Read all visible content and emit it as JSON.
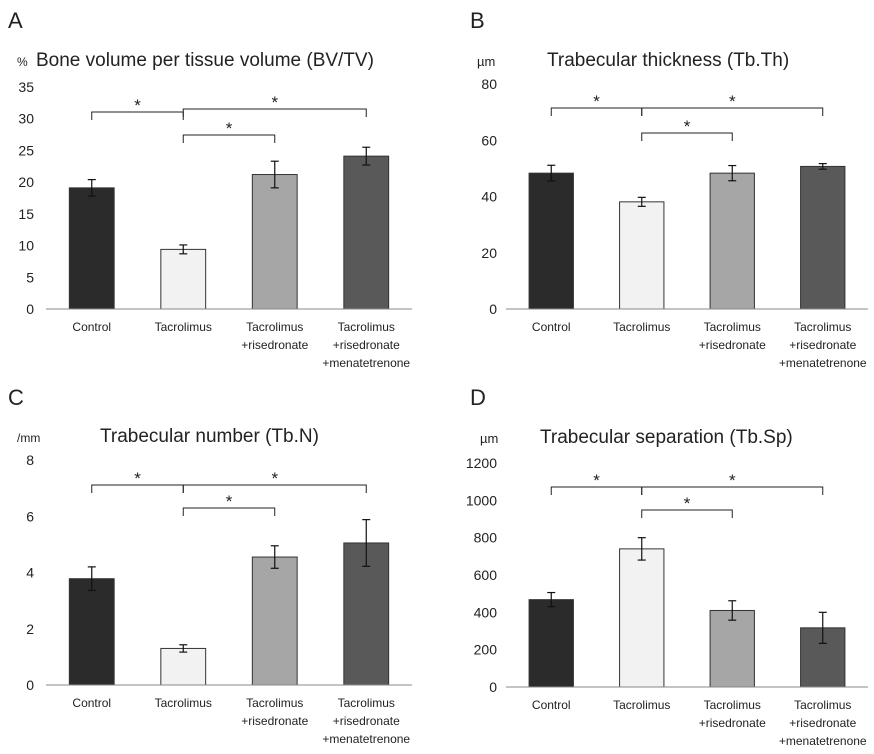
{
  "panels": [
    {
      "letter": "A",
      "unit": "%",
      "title": "Bone volume per tissue volume (BV/TV)"
    },
    {
      "letter": "B",
      "unit": "µm",
      "title": "Trabecular thickness  (Tb.Th)"
    },
    {
      "letter": "C",
      "unit": "/mm",
      "title": "Trabecular number  (Tb.N)"
    },
    {
      "letter": "D",
      "unit": "µm",
      "title": "Trabecular separation  (Tb.Sp)"
    }
  ],
  "colors": {
    "Control": "#2b2b2b",
    "Tacrolimus": "#f2f2f2",
    "Tacrolimus+risedronate": "#a6a6a6",
    "Tacrolimus+risedronate+menatetrenone": "#595959",
    "outline": "#333333"
  },
  "chart_data": [
    {
      "type": "bar",
      "title": "Bone volume per tissue volume (BV/TV)",
      "ylabel": "%",
      "categories": [
        "Control",
        "Tacrolimus",
        "Tacrolimus\n+risedronate",
        "Tacrolimus\n+risedronate\n+menatetrenone"
      ],
      "values": [
        19.1,
        9.4,
        21.2,
        24.1
      ],
      "errors": [
        1.3,
        0.7,
        2.1,
        1.4
      ],
      "ylim": [
        0,
        35
      ],
      "yticks": [
        0,
        5,
        10,
        15,
        20,
        25,
        30,
        35
      ],
      "significance": [
        {
          "from": 0,
          "to": 1,
          "label": "*"
        },
        {
          "from": 1,
          "to": 2,
          "label": "*"
        },
        {
          "from": 1,
          "to": 3,
          "label": "*"
        }
      ]
    },
    {
      "type": "bar",
      "title": "Trabecular thickness  (Tb.Th)",
      "ylabel": "µm",
      "categories": [
        "Control",
        "Tacrolimus",
        "Tacrolimus\n+risedronate",
        "Tacrolimus\n+risedronate\n+menatetrenone"
      ],
      "values": [
        48.3,
        38.1,
        48.3,
        50.7
      ],
      "errors": [
        2.8,
        1.6,
        2.7,
        1.0
      ],
      "ylim": [
        0,
        80
      ],
      "yticks": [
        0,
        20,
        40,
        60,
        80
      ],
      "significance": [
        {
          "from": 0,
          "to": 1,
          "label": "*"
        },
        {
          "from": 1,
          "to": 2,
          "label": "*"
        },
        {
          "from": 1,
          "to": 3,
          "label": "*"
        }
      ]
    },
    {
      "type": "bar",
      "title": "Trabecular number  (Tb.N)",
      "ylabel": "/mm",
      "categories": [
        "Control",
        "Tacrolimus",
        "Tacrolimus\n+risedronate",
        "Tacrolimus\n+risedronate\n+menatetrenone"
      ],
      "values": [
        3.78,
        1.3,
        4.55,
        5.05
      ],
      "errors": [
        0.42,
        0.13,
        0.4,
        0.83
      ],
      "ylim": [
        0,
        8
      ],
      "yticks": [
        0,
        2,
        4,
        6,
        8
      ],
      "significance": [
        {
          "from": 0,
          "to": 1,
          "label": "*"
        },
        {
          "from": 1,
          "to": 2,
          "label": "*"
        },
        {
          "from": 1,
          "to": 3,
          "label": "*"
        }
      ]
    },
    {
      "type": "bar",
      "title": "Trabecular separation  (Tb.Sp)",
      "ylabel": "µm",
      "categories": [
        "Control",
        "Tacrolimus",
        "Tacrolimus\n+risedronate",
        "Tacrolimus\n+risedronate\n+menatetrenone"
      ],
      "values": [
        468,
        740,
        410,
        317
      ],
      "errors": [
        38,
        60,
        52,
        83
      ],
      "ylim": [
        0,
        1200
      ],
      "yticks": [
        0,
        200,
        400,
        600,
        800,
        1000,
        1200
      ],
      "significance": [
        {
          "from": 0,
          "to": 1,
          "label": "*"
        },
        {
          "from": 1,
          "to": 2,
          "label": "*"
        },
        {
          "from": 1,
          "to": 3,
          "label": "*"
        }
      ]
    }
  ]
}
